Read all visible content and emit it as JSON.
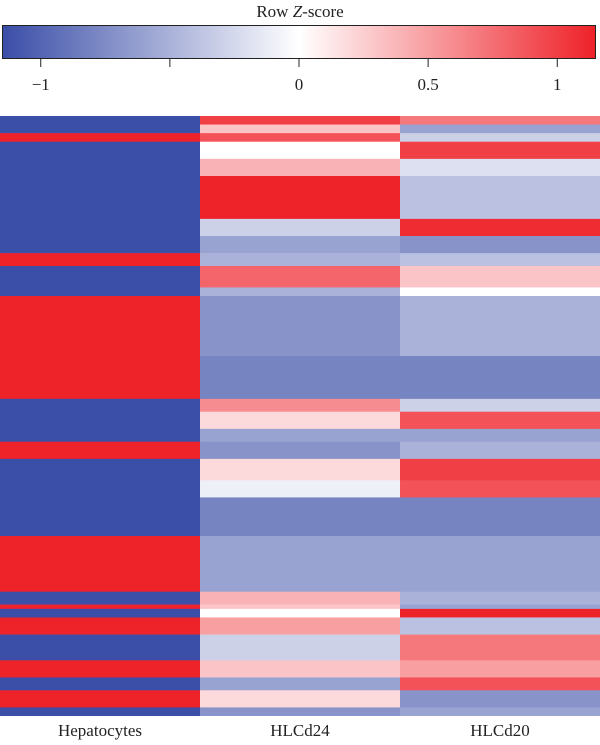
{
  "legend": {
    "title_prefix": "Row ",
    "title_italic": "Z",
    "title_suffix": "-score",
    "low_color": "#3b4ea8",
    "mid_color": "#ffffff",
    "high_color": "#ee2229",
    "range": [
      -1.15,
      1.15
    ],
    "ticks": [
      {
        "value": -1,
        "label": "−1"
      },
      {
        "value": -0.5,
        "label": ""
      },
      {
        "value": 0,
        "label": "0"
      },
      {
        "value": 0.5,
        "label": "0.5"
      },
      {
        "value": 1,
        "label": "1"
      }
    ]
  },
  "chart_data": {
    "type": "heatmap",
    "xlabel": "",
    "ylabel": "",
    "columns": [
      "Hepatocytes",
      "HLCd24",
      "HLCd20"
    ],
    "value_range": [
      -1.15,
      1.15
    ],
    "row_groups": [
      {
        "rows": 2,
        "values": [
          -1.15,
          1.0,
          0.7
        ]
      },
      {
        "rows": 2,
        "values": [
          -1.15,
          0.3,
          -0.6
        ]
      },
      {
        "rows": 2,
        "values": [
          1.15,
          0.9,
          -0.3
        ]
      },
      {
        "rows": 4,
        "values": [
          -1.15,
          0.0,
          1.0
        ]
      },
      {
        "rows": 4,
        "values": [
          -1.15,
          0.4,
          -0.2
        ]
      },
      {
        "rows": 10,
        "values": [
          -1.15,
          1.15,
          -0.4
        ]
      },
      {
        "rows": 4,
        "values": [
          -1.15,
          -0.3,
          1.1
        ]
      },
      {
        "rows": 4,
        "values": [
          -1.15,
          -0.6,
          -0.7
        ]
      },
      {
        "rows": 3,
        "values": [
          1.15,
          -0.5,
          -0.4
        ]
      },
      {
        "rows": 5,
        "values": [
          -1.15,
          0.8,
          0.3
        ]
      },
      {
        "rows": 2,
        "values": [
          -1.15,
          -0.5,
          0.0
        ]
      },
      {
        "rows": 14,
        "values": [
          1.15,
          -0.7,
          -0.5
        ]
      },
      {
        "rows": 10,
        "values": [
          1.15,
          -0.8,
          -0.8
        ]
      },
      {
        "rows": 3,
        "values": [
          -1.15,
          0.6,
          -0.3
        ]
      },
      {
        "rows": 4,
        "values": [
          -1.15,
          0.2,
          0.9
        ]
      },
      {
        "rows": 3,
        "values": [
          -1.15,
          -0.6,
          -0.6
        ]
      },
      {
        "rows": 4,
        "values": [
          1.15,
          -0.7,
          -0.5
        ]
      },
      {
        "rows": 5,
        "values": [
          -1.15,
          0.2,
          1.0
        ]
      },
      {
        "rows": 4,
        "values": [
          -1.15,
          -0.1,
          0.9
        ]
      },
      {
        "rows": 9,
        "values": [
          -1.15,
          -0.8,
          -0.8
        ]
      },
      {
        "rows": 13,
        "values": [
          1.15,
          -0.6,
          -0.6
        ]
      },
      {
        "rows": 3,
        "values": [
          -1.15,
          0.4,
          -0.5
        ]
      },
      {
        "rows": 1,
        "values": [
          1.15,
          0.3,
          -0.6
        ]
      },
      {
        "rows": 2,
        "values": [
          -1.15,
          0.0,
          1.15
        ]
      },
      {
        "rows": 4,
        "values": [
          1.15,
          0.5,
          -0.4
        ]
      },
      {
        "rows": 6,
        "values": [
          -1.15,
          -0.3,
          0.7
        ]
      },
      {
        "rows": 4,
        "values": [
          1.15,
          0.3,
          0.5
        ]
      },
      {
        "rows": 3,
        "values": [
          -1.15,
          -0.6,
          0.9
        ]
      },
      {
        "rows": 4,
        "values": [
          1.15,
          0.2,
          -0.7
        ]
      },
      {
        "rows": 2,
        "values": [
          -1.15,
          -0.7,
          -0.6
        ]
      }
    ]
  }
}
